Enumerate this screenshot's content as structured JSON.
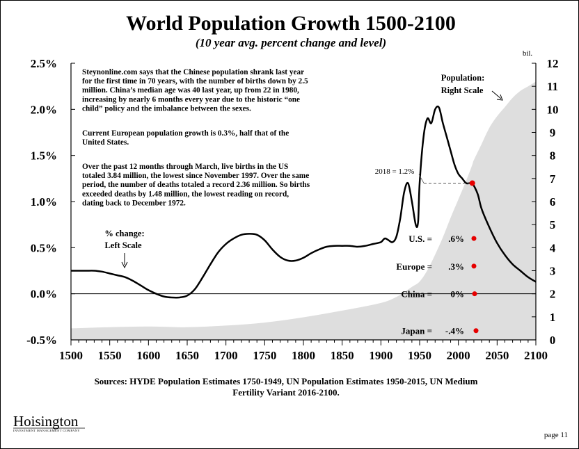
{
  "title": "World Population Growth 1500-2100",
  "subtitle": "(10 year avg. percent change and level)",
  "chart_data": {
    "type": "line",
    "title": "World Population Growth 1500-2100",
    "subtitle": "(10 year avg. percent change and level)",
    "x_ticks": [
      "1500",
      "1550",
      "1600",
      "1650",
      "1700",
      "1750",
      "1800",
      "1850",
      "1900",
      "1950",
      "2000",
      "2050",
      "2100"
    ],
    "xlim": [
      1500,
      2100
    ],
    "left_axis": {
      "label": "% change: Left Scale",
      "ticks": [
        "2.5%",
        "2.0%",
        "1.5%",
        "1.0%",
        "0.5%",
        "0.0%",
        "-0.5%"
      ],
      "ylim": [
        -0.5,
        2.5
      ]
    },
    "right_axis": {
      "unit": "bil.",
      "ticks": [
        "12",
        "11",
        "10",
        "9",
        "8",
        "7",
        "6",
        "5",
        "4",
        "3",
        "2",
        "1",
        "0"
      ],
      "ylim": [
        0,
        12
      ]
    },
    "series": [
      {
        "name": "% change",
        "axis": "left",
        "type": "line",
        "points": [
          [
            1500,
            0.25
          ],
          [
            1510,
            0.25
          ],
          [
            1520,
            0.25
          ],
          [
            1530,
            0.25
          ],
          [
            1540,
            0.24
          ],
          [
            1550,
            0.22
          ],
          [
            1560,
            0.2
          ],
          [
            1570,
            0.18
          ],
          [
            1580,
            0.14
          ],
          [
            1590,
            0.09
          ],
          [
            1600,
            0.04
          ],
          [
            1610,
            0.0
          ],
          [
            1620,
            -0.03
          ],
          [
            1630,
            -0.04
          ],
          [
            1640,
            -0.04
          ],
          [
            1650,
            -0.02
          ],
          [
            1660,
            0.05
          ],
          [
            1670,
            0.18
          ],
          [
            1680,
            0.32
          ],
          [
            1690,
            0.45
          ],
          [
            1700,
            0.54
          ],
          [
            1710,
            0.6
          ],
          [
            1720,
            0.64
          ],
          [
            1730,
            0.65
          ],
          [
            1740,
            0.64
          ],
          [
            1750,
            0.58
          ],
          [
            1760,
            0.48
          ],
          [
            1770,
            0.4
          ],
          [
            1780,
            0.36
          ],
          [
            1790,
            0.36
          ],
          [
            1800,
            0.39
          ],
          [
            1810,
            0.44
          ],
          [
            1820,
            0.48
          ],
          [
            1830,
            0.51
          ],
          [
            1840,
            0.52
          ],
          [
            1850,
            0.52
          ],
          [
            1860,
            0.52
          ],
          [
            1870,
            0.51
          ],
          [
            1880,
            0.52
          ],
          [
            1890,
            0.54
          ],
          [
            1900,
            0.56
          ],
          [
            1905,
            0.6
          ],
          [
            1910,
            0.58
          ],
          [
            1915,
            0.56
          ],
          [
            1920,
            0.62
          ],
          [
            1925,
            0.82
          ],
          [
            1930,
            1.1
          ],
          [
            1935,
            1.2
          ],
          [
            1940,
            1.0
          ],
          [
            1945,
            0.75
          ],
          [
            1948,
            0.78
          ],
          [
            1950,
            1.2
          ],
          [
            1955,
            1.7
          ],
          [
            1960,
            1.9
          ],
          [
            1965,
            1.85
          ],
          [
            1970,
            2.0
          ],
          [
            1975,
            2.02
          ],
          [
            1980,
            1.85
          ],
          [
            1985,
            1.7
          ],
          [
            1990,
            1.55
          ],
          [
            1995,
            1.4
          ],
          [
            2000,
            1.3
          ],
          [
            2005,
            1.25
          ],
          [
            2010,
            1.2
          ],
          [
            2015,
            1.2
          ],
          [
            2018,
            1.2
          ],
          [
            2025,
            1.08
          ],
          [
            2030,
            0.92
          ],
          [
            2040,
            0.72
          ],
          [
            2050,
            0.55
          ],
          [
            2060,
            0.42
          ],
          [
            2070,
            0.32
          ],
          [
            2080,
            0.25
          ],
          [
            2090,
            0.18
          ],
          [
            2100,
            0.13
          ]
        ]
      },
      {
        "name": "Population: Right Scale",
        "axis": "right",
        "type": "area",
        "points": [
          [
            1500,
            0.5
          ],
          [
            1550,
            0.55
          ],
          [
            1600,
            0.58
          ],
          [
            1650,
            0.55
          ],
          [
            1700,
            0.62
          ],
          [
            1750,
            0.75
          ],
          [
            1800,
            0.98
          ],
          [
            1850,
            1.27
          ],
          [
            1900,
            1.6
          ],
          [
            1920,
            1.86
          ],
          [
            1930,
            2.07
          ],
          [
            1940,
            2.3
          ],
          [
            1950,
            2.53
          ],
          [
            1960,
            3.02
          ],
          [
            1970,
            3.7
          ],
          [
            1980,
            4.45
          ],
          [
            1990,
            5.3
          ],
          [
            2000,
            6.1
          ],
          [
            2010,
            6.9
          ],
          [
            2018,
            7.6
          ],
          [
            2020,
            7.8
          ],
          [
            2030,
            8.5
          ],
          [
            2040,
            9.2
          ],
          [
            2050,
            9.7
          ],
          [
            2060,
            10.1
          ],
          [
            2070,
            10.5
          ],
          [
            2080,
            10.8
          ],
          [
            2090,
            11.0
          ],
          [
            2100,
            11.2
          ]
        ]
      }
    ],
    "highlight": {
      "label": "2018 = 1.2%",
      "x": 2018,
      "y": 1.2
    },
    "country_points": [
      {
        "label": "U.S. =",
        "value_label": ".6%",
        "value": 0.6
      },
      {
        "label": "Europe =",
        "value_label": ".3%",
        "value": 0.3
      },
      {
        "label": "China =",
        "value_label": "0%",
        "value": 0.0
      },
      {
        "label": "Japan =",
        "value_label": "-.4%",
        "value": -0.4
      }
    ],
    "annotations": {
      "left_scale": [
        "% change:",
        "Left Scale"
      ],
      "right_scale": [
        "Population:",
        "Right Scale"
      ]
    }
  },
  "notes": [
    {
      "lines": [
        "Steynonline.com says that the Chinese population shrank last year",
        "for the first time in 70 years, with the number of births down by 2.5",
        "million.  China’s median age was 40 last year, up from 22 in 1980,",
        "increasing by nearly 6 months every year due to the historic “one",
        "child” policy and the imbalance between the sexes."
      ]
    },
    {
      "lines": [
        "Current European population growth is 0.3%, half that of the",
        "United States."
      ]
    },
    {
      "lines": [
        "Over the past 12 months through March, live births in the US",
        "totaled 3.84 million, the lowest since November 1997. Over the same",
        "period, the number of deaths totaled a record 2.36 million. So births",
        "exceeded deaths by 1.48 million, the lowest reading on record,",
        "dating back to December 1972."
      ]
    }
  ],
  "sources": [
    "Sources: HYDE Population Estimates 1750-1949, UN Population Estimates 1950-2015, UN Medium",
    "Fertility Variant 2016-2100."
  ],
  "logo": {
    "name": "Hoisington",
    "tagline": "INVESTMENT MANAGEMENT COMPANY"
  },
  "page_number": "page 11",
  "colors": {
    "line": "#000000",
    "area": "#dedede",
    "marker": "#e60000"
  }
}
